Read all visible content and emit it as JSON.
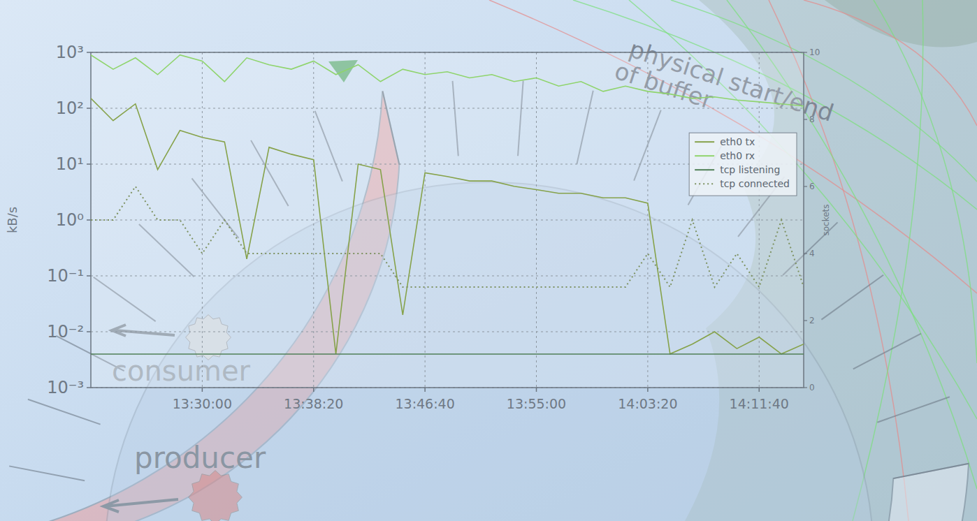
{
  "chart_data": {
    "type": "line",
    "log": "y",
    "grid": true,
    "legend": "right",
    "y_label": "kB/s",
    "y2_label": "sockets",
    "x": [
      48100,
      48200,
      48300,
      48400,
      48500,
      48600,
      48700,
      48800,
      48900,
      49000,
      49100,
      49200,
      49300,
      49400,
      49500,
      49600,
      49700,
      49800,
      49900,
      50000,
      50100,
      50200,
      50300,
      50400,
      50500,
      50600,
      50700,
      50800,
      50900,
      51000,
      51100,
      51200,
      51300
    ],
    "xlim": [
      48100,
      51300
    ],
    "xticks": [
      {
        "value": 48600,
        "label": "13:30:00"
      },
      {
        "value": 49100,
        "label": "13:38:20"
      },
      {
        "value": 49600,
        "label": "13:46:40"
      },
      {
        "value": 50100,
        "label": "13:55:00"
      },
      {
        "value": 50600,
        "label": "14:03:20"
      },
      {
        "value": 51100,
        "label": "14:11:40"
      }
    ],
    "ylim": [
      0.001,
      1000
    ],
    "yticks": [
      {
        "value": 0.001,
        "label": "10⁻³"
      },
      {
        "value": 0.01,
        "label": "10⁻²"
      },
      {
        "value": 0.1,
        "label": "10⁻¹"
      },
      {
        "value": 1,
        "label": "10⁰"
      },
      {
        "value": 10,
        "label": "10¹"
      },
      {
        "value": 100,
        "label": "10²"
      },
      {
        "value": 1000,
        "label": "10³"
      }
    ],
    "y2lim": [
      0,
      10
    ],
    "y2ticks": [
      0,
      2,
      4,
      6,
      8,
      10
    ],
    "series": [
      {
        "name": "eth0 tx",
        "color": "#86a24a",
        "line_style": "solid",
        "values": [
          150,
          60,
          120,
          8,
          40,
          30,
          25,
          0.2,
          20,
          15,
          12,
          0.004,
          10,
          8,
          0.02,
          7,
          6,
          5,
          5,
          4,
          3.5,
          3,
          3,
          2.5,
          2.5,
          2,
          0.004,
          0.006,
          0.01,
          0.005,
          0.008,
          0.004,
          0.006
        ]
      },
      {
        "name": "eth0 rx",
        "color": "#8fd46c",
        "line_style": "solid",
        "values": [
          900,
          500,
          800,
          400,
          900,
          700,
          300,
          800,
          600,
          500,
          700,
          400,
          600,
          300,
          500,
          400,
          450,
          350,
          400,
          300,
          350,
          250,
          300,
          200,
          250,
          200,
          180,
          150,
          160,
          140,
          130,
          120,
          110
        ]
      },
      {
        "name": "tcp listening",
        "color": "#4f7f56",
        "line_style": "solid",
        "axis": "y2",
        "values": [
          1,
          1,
          1,
          1,
          1,
          1,
          1,
          1,
          1,
          1,
          1,
          1,
          1,
          1,
          1,
          1,
          1,
          1,
          1,
          1,
          1,
          1,
          1,
          1,
          1,
          1,
          1,
          1,
          1,
          1,
          1,
          1,
          1
        ]
      },
      {
        "name": "tcp connected",
        "color": "#7d9160",
        "line_style": "dotted",
        "axis": "y2",
        "values": [
          5,
          5,
          6,
          5,
          5,
          4,
          5,
          4,
          4,
          4,
          4,
          4,
          4,
          4,
          3,
          3,
          3,
          3,
          3,
          3,
          3,
          3,
          3,
          3,
          3,
          4,
          3,
          5,
          3,
          4,
          3,
          5,
          3
        ]
      }
    ]
  },
  "diagram": {
    "buffer_label": "physical start/end of buffer",
    "consumer": "consumer",
    "producer": "producer"
  }
}
